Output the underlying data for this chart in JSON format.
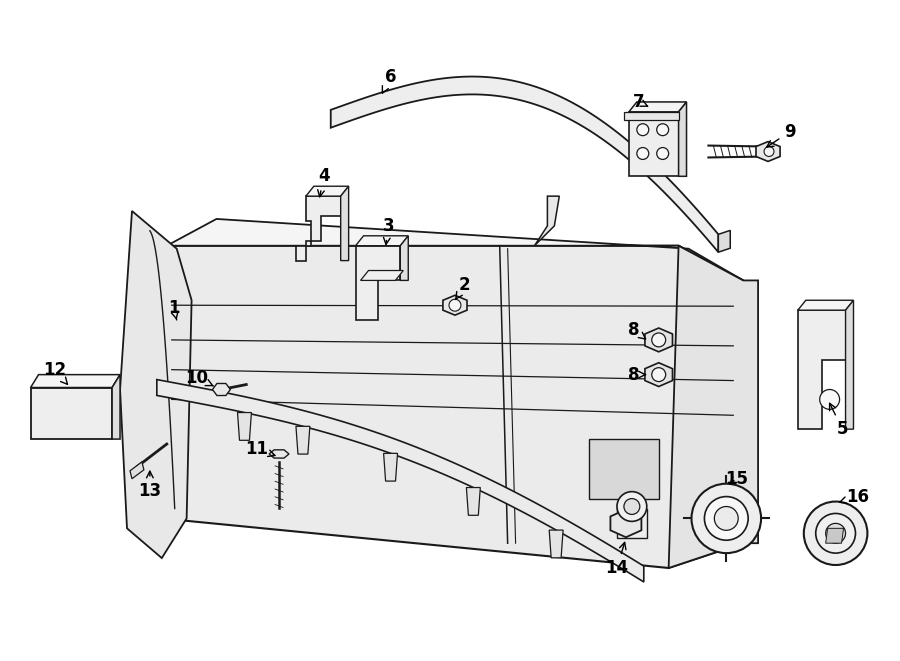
{
  "background_color": "#ffffff",
  "line_color": "#1a1a1a",
  "figsize": [
    9.0,
    6.61
  ],
  "dpi": 100
}
